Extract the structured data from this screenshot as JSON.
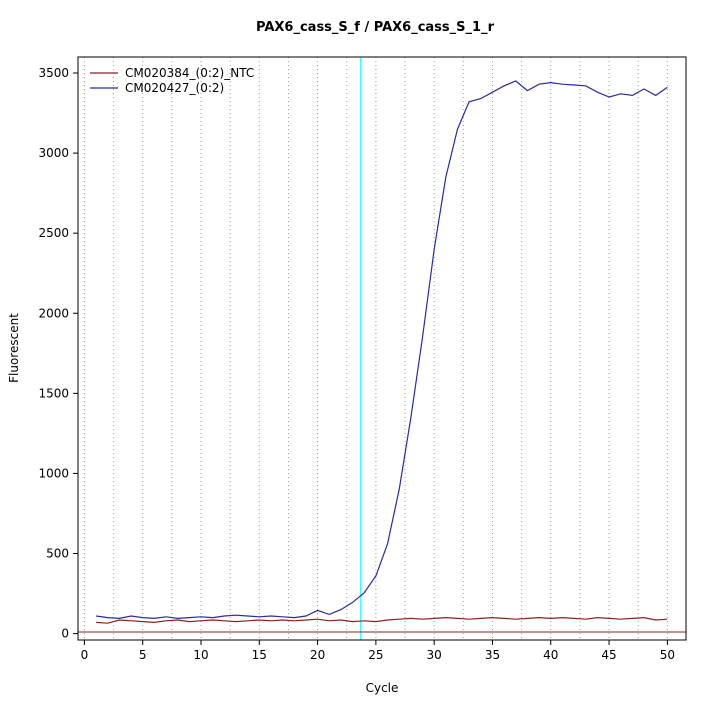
{
  "chart_data": {
    "type": "line",
    "title": "PAX6_cass_S_f / PAX6_cass_S_1_r",
    "xlabel": "Cycle",
    "ylabel": "Fluorescent",
    "x_ticks": [
      0,
      5,
      10,
      15,
      20,
      25,
      30,
      35,
      40,
      45,
      50
    ],
    "y_ticks": [
      0,
      500,
      1000,
      1500,
      2000,
      2500,
      3000,
      3500
    ],
    "xlim": [
      -0.55,
      51.6
    ],
    "ylim": [
      -40,
      3600
    ],
    "grid": {
      "vertical_step": 2.5,
      "vertical_min": 0,
      "vertical_max": 50,
      "color": "#9a9a9a",
      "style": "dotted",
      "horizontal": false
    },
    "threshold_line": {
      "y": 10,
      "color": "#8b2222"
    },
    "ct_line": {
      "x": 23.7,
      "color": "#00ffff"
    },
    "legend_position": "top-left",
    "x": [
      1,
      2,
      3,
      4,
      5,
      6,
      7,
      8,
      9,
      10,
      11,
      12,
      13,
      14,
      15,
      16,
      17,
      18,
      19,
      20,
      21,
      22,
      23,
      24,
      25,
      26,
      27,
      28,
      29,
      30,
      31,
      32,
      33,
      34,
      35,
      36,
      37,
      38,
      39,
      40,
      41,
      42,
      43,
      44,
      45,
      46,
      47,
      48,
      49,
      50
    ],
    "series": [
      {
        "name": "CM020384_(0:2)_NTC",
        "color": "#8b2222",
        "values": [
          70,
          65,
          85,
          80,
          75,
          70,
          80,
          85,
          75,
          80,
          85,
          80,
          75,
          80,
          85,
          80,
          85,
          80,
          85,
          90,
          80,
          85,
          75,
          80,
          75,
          85,
          90,
          95,
          90,
          95,
          100,
          95,
          90,
          95,
          100,
          95,
          90,
          95,
          100,
          95,
          100,
          95,
          90,
          100,
          95,
          90,
          95,
          100,
          85,
          90
        ]
      },
      {
        "name": "CM020427_(0:2)",
        "color": "#2b2b9e",
        "values": [
          110,
          100,
          95,
          110,
          100,
          95,
          105,
          95,
          100,
          105,
          100,
          110,
          115,
          110,
          105,
          110,
          105,
          100,
          110,
          145,
          120,
          150,
          195,
          255,
          360,
          560,
          900,
          1350,
          1850,
          2400,
          2850,
          3150,
          3320,
          3340,
          3380,
          3420,
          3450,
          3390,
          3430,
          3440,
          3430,
          3425,
          3420,
          3380,
          3350,
          3370,
          3360,
          3400,
          3360,
          3410
        ]
      }
    ]
  }
}
